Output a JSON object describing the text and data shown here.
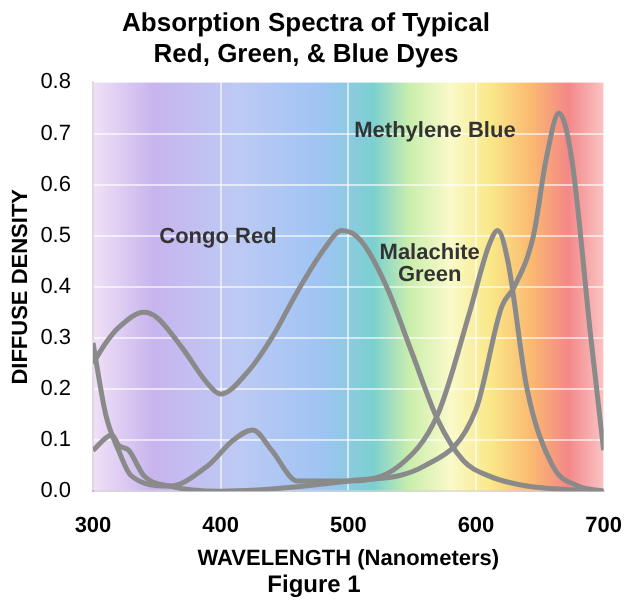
{
  "chart_data": {
    "type": "line",
    "title": [
      "Absorption Spectra of Typical",
      "Red, Green, & Blue Dyes"
    ],
    "xlabel": "WAVELENGTH (Nanometers)",
    "ylabel": "DIFFUSE DENSITY",
    "annotations": [
      "Figure 1"
    ],
    "xlim": [
      300,
      700
    ],
    "xticks": [
      300,
      400,
      500,
      600,
      700
    ],
    "ylim": [
      0,
      0.8
    ],
    "yticks": [
      {
        "value": 0,
        "label": "0.0"
      },
      {
        "value": 0.1,
        "label": "0.1"
      },
      {
        "value": 0.2,
        "label": "0.2"
      },
      {
        "value": 0.3,
        "label": "0.3"
      },
      {
        "value": 0.4,
        "label": "0.4"
      },
      {
        "value": 0.5,
        "label": "0.5"
      },
      {
        "value": 0.6,
        "label": "0.6"
      },
      {
        "value": 0.7,
        "label": "0.7"
      },
      {
        "value": 0.8,
        "label": "0.8"
      }
    ],
    "grid": true,
    "legend": false,
    "marker": "none",
    "line_style": "solid",
    "series": [
      {
        "name": "Congo Red",
        "color": "#8a8a8a",
        "x": [
          300,
          310,
          320,
          340,
          350,
          370,
          390,
          400,
          420,
          440,
          460,
          480,
          495,
          510,
          530,
          550,
          570,
          590,
          610,
          640,
          700
        ],
        "values": [
          0.25,
          0.29,
          0.32,
          0.35,
          0.34,
          0.28,
          0.21,
          0.19,
          0.23,
          0.3,
          0.39,
          0.47,
          0.51,
          0.49,
          0.4,
          0.27,
          0.14,
          0.06,
          0.03,
          0.01,
          0
        ]
      },
      {
        "name": "Methylene Blue",
        "color": "#8a8a8a",
        "x": [
          300,
          315,
          320,
          328,
          340,
          360,
          400,
          500,
          560,
          600,
          620,
          630,
          645,
          655,
          665,
          675,
          690,
          700
        ],
        "values": [
          0.08,
          0.11,
          0.09,
          0.08,
          0.03,
          0.01,
          0,
          0.02,
          0.05,
          0.16,
          0.36,
          0.4,
          0.5,
          0.65,
          0.74,
          0.65,
          0.3,
          0.08
        ]
      },
      {
        "name": "Malachite Green",
        "color": "#8a8a8a",
        "x": [
          300,
          310,
          320,
          330,
          360,
          390,
          410,
          425,
          440,
          460,
          500,
          540,
          570,
          595,
          610,
          617,
          625,
          640,
          660,
          680,
          700
        ],
        "values": [
          0.29,
          0.15,
          0.08,
          0.03,
          0.01,
          0.05,
          0.1,
          0.12,
          0.08,
          0.02,
          0.02,
          0.05,
          0.15,
          0.35,
          0.48,
          0.51,
          0.45,
          0.2,
          0.05,
          0.01,
          0
        ]
      }
    ]
  }
}
